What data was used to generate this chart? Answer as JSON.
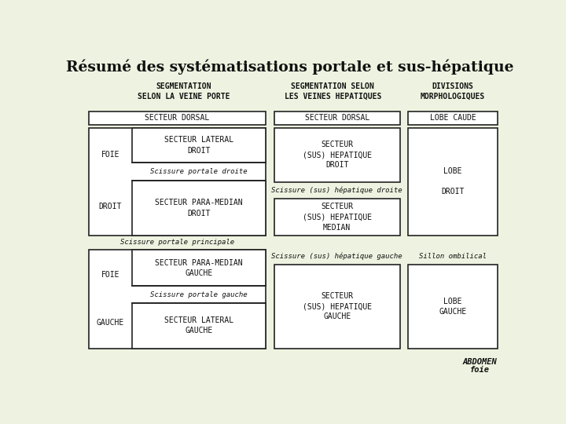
{
  "title": "Résumé des systématisations portale et sus-hépatique",
  "bg_color": "#edf3e0",
  "box_face": "#ffffff",
  "ec": "#222222",
  "tc": "#111111",
  "col1_header": "SEGMENTATION\nSELON LA VEINE PORTE",
  "col2_header": "SEGMENTATION SELON\nLES VEINES HEPATIQUES",
  "col3_header": "DIVISIONS\nMORPHOLOGIQUES",
  "lw": 1.2
}
